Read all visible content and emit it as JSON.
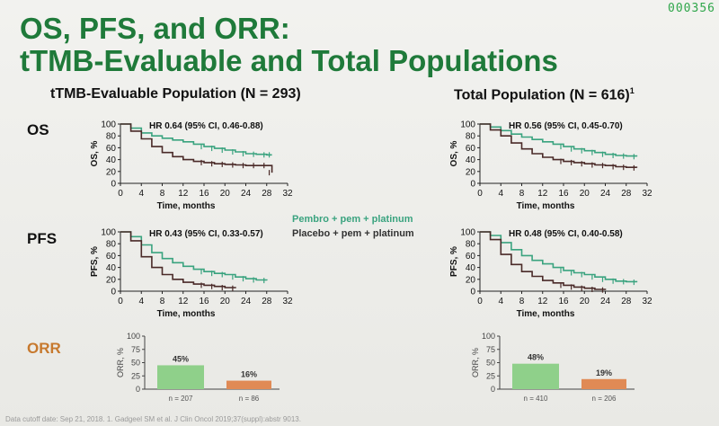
{
  "slide": {
    "counter": "000356",
    "title_line1": "OS, PFS, and ORR:",
    "title_line2": "tTMB-Evaluable and Total Populations",
    "left_header": "tTMB-Evaluable Population (N = 293)",
    "right_header_main": "Total Population (N = 616)",
    "right_header_sup": "1",
    "row_os": "OS",
    "row_pfs": "PFS",
    "row_orr": "ORR",
    "legend_pembro": "Pembro + pem + platinum",
    "legend_placebo": "Placebo + pem + platinum",
    "footer": "Data cutoff date: Sep 21, 2018. 1. Gadgeel SM et al. J Clin Oncol 2019;37(suppl):abstr 9013.",
    "colors": {
      "title": "#1f7a3a",
      "pembro": "#3aa37f",
      "placebo": "#4a2a28",
      "orr_label": "#c7792e",
      "bar_pembro": "#8fd08a",
      "bar_placebo": "#e08a55"
    }
  },
  "chart_data": [
    {
      "id": "os_ttmb",
      "type": "line",
      "hr_text": "HR 0.64 (95% CI, 0.46-0.88)",
      "xlabel": "Time, months",
      "ylabel": "OS, %",
      "xlim": [
        0,
        32
      ],
      "ylim": [
        0,
        100
      ],
      "xticks": [
        0,
        4,
        8,
        12,
        16,
        20,
        24,
        28,
        32
      ],
      "yticks": [
        0,
        20,
        40,
        60,
        80,
        100
      ],
      "series": [
        {
          "name": "Pembro + pem + platinum",
          "x": [
            0,
            2,
            4,
            6,
            8,
            10,
            12,
            14,
            16,
            18,
            20,
            22,
            24,
            26,
            28,
            29
          ],
          "y": [
            100,
            93,
            85,
            80,
            76,
            73,
            70,
            66,
            62,
            59,
            56,
            53,
            50,
            49,
            48,
            48
          ]
        },
        {
          "name": "Placebo + pem + platinum",
          "x": [
            0,
            2,
            4,
            6,
            8,
            10,
            12,
            14,
            16,
            18,
            20,
            22,
            24,
            26,
            28,
            29
          ],
          "y": [
            100,
            88,
            75,
            62,
            52,
            45,
            40,
            37,
            35,
            33,
            32,
            31,
            30,
            30,
            30,
            18
          ]
        }
      ]
    },
    {
      "id": "os_total",
      "type": "line",
      "hr_text": "HR 0.56 (95% CI, 0.45-0.70)",
      "xlabel": "Time, months",
      "ylabel": "OS, %",
      "xlim": [
        0,
        32
      ],
      "ylim": [
        0,
        100
      ],
      "xticks": [
        0,
        4,
        8,
        12,
        16,
        20,
        24,
        28,
        32
      ],
      "yticks": [
        0,
        20,
        40,
        60,
        80,
        100
      ],
      "series": [
        {
          "name": "Pembro + pem + platinum",
          "x": [
            0,
            2,
            4,
            6,
            8,
            10,
            12,
            14,
            16,
            18,
            20,
            22,
            24,
            26,
            28,
            30
          ],
          "y": [
            100,
            95,
            89,
            83,
            78,
            74,
            70,
            66,
            62,
            58,
            55,
            52,
            49,
            47,
            46,
            45
          ]
        },
        {
          "name": "Placebo + pem + platinum",
          "x": [
            0,
            2,
            4,
            6,
            8,
            10,
            12,
            14,
            16,
            18,
            20,
            22,
            24,
            26,
            28,
            30
          ],
          "y": [
            100,
            90,
            80,
            68,
            58,
            50,
            44,
            40,
            37,
            35,
            33,
            31,
            30,
            28,
            27,
            26
          ]
        }
      ]
    },
    {
      "id": "pfs_ttmb",
      "type": "line",
      "hr_text": "HR 0.43 (95% CI, 0.33-0.57)",
      "xlabel": "Time, months",
      "ylabel": "PFS, %",
      "xlim": [
        0,
        32
      ],
      "ylim": [
        0,
        100
      ],
      "xticks": [
        0,
        4,
        8,
        12,
        16,
        20,
        24,
        28,
        32
      ],
      "yticks": [
        0,
        20,
        40,
        60,
        80,
        100
      ],
      "series": [
        {
          "name": "Pembro + pem + platinum",
          "x": [
            0,
            2,
            4,
            6,
            8,
            10,
            12,
            14,
            16,
            18,
            20,
            22,
            24,
            26,
            28
          ],
          "y": [
            100,
            92,
            78,
            65,
            55,
            48,
            42,
            37,
            33,
            30,
            28,
            24,
            21,
            19,
            18
          ]
        },
        {
          "name": "Placebo + pem + platinum",
          "x": [
            0,
            2,
            4,
            6,
            8,
            10,
            12,
            14,
            16,
            18,
            20,
            22
          ],
          "y": [
            100,
            85,
            58,
            40,
            28,
            20,
            15,
            12,
            10,
            8,
            6,
            5
          ]
        }
      ]
    },
    {
      "id": "pfs_total",
      "type": "line",
      "hr_text": "HR 0.48 (95% CI, 0.40-0.58)",
      "xlabel": "Time, months",
      "ylabel": "PFS, %",
      "xlim": [
        0,
        32
      ],
      "ylim": [
        0,
        100
      ],
      "xticks": [
        0,
        4,
        8,
        12,
        16,
        20,
        24,
        28,
        32
      ],
      "yticks": [
        0,
        20,
        40,
        60,
        80,
        100
      ],
      "series": [
        {
          "name": "Pembro + pem + platinum",
          "x": [
            0,
            2,
            4,
            6,
            8,
            10,
            12,
            14,
            16,
            18,
            20,
            22,
            24,
            26,
            28,
            30
          ],
          "y": [
            100,
            94,
            82,
            70,
            60,
            52,
            46,
            40,
            35,
            31,
            28,
            24,
            20,
            17,
            16,
            15
          ]
        },
        {
          "name": "Placebo + pem + platinum",
          "x": [
            0,
            2,
            4,
            6,
            8,
            10,
            12,
            14,
            16,
            18,
            20,
            22,
            24
          ],
          "y": [
            100,
            87,
            62,
            45,
            33,
            25,
            18,
            14,
            10,
            7,
            5,
            3,
            2
          ]
        }
      ]
    },
    {
      "id": "orr_ttmb",
      "type": "bar",
      "ylabel": "ORR, %",
      "ylim": [
        0,
        100
      ],
      "yticks": [
        0,
        25,
        50,
        75,
        100
      ],
      "categories": [
        "Pembro + pem + platinum",
        "Placebo + pem + platinum"
      ],
      "values": [
        45,
        16
      ],
      "value_labels": [
        "45%",
        "16%"
      ],
      "n_labels": [
        "n = 207",
        "n = 86"
      ]
    },
    {
      "id": "orr_total",
      "type": "bar",
      "ylabel": "ORR, %",
      "ylim": [
        0,
        100
      ],
      "yticks": [
        0,
        25,
        50,
        75,
        100
      ],
      "categories": [
        "Pembro + pem + platinum",
        "Placebo + pem + platinum"
      ],
      "values": [
        48,
        19
      ],
      "value_labels": [
        "48%",
        "19%"
      ],
      "n_labels": [
        "n = 410",
        "n = 206"
      ]
    }
  ]
}
